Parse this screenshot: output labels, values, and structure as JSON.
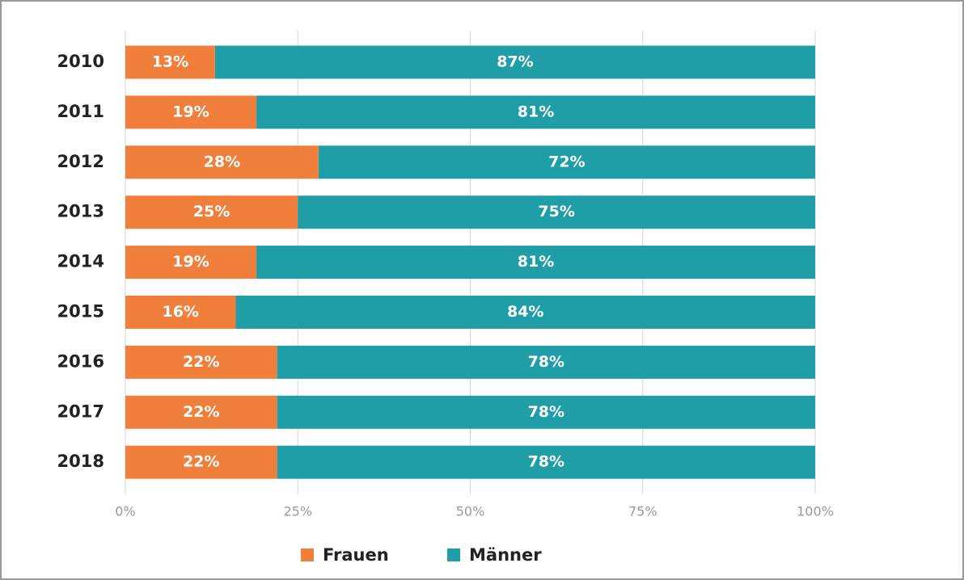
{
  "chart_data": {
    "type": "stacked-bar-horizontal",
    "categories": [
      "2010",
      "2011",
      "2012",
      "2013",
      "2014",
      "2015",
      "2016",
      "2017",
      "2018"
    ],
    "series": [
      {
        "name": "Frauen",
        "color": "#f07f3c",
        "values": [
          13,
          19,
          28,
          25,
          19,
          16,
          22,
          22,
          22
        ],
        "value_labels": [
          "13%",
          "19%",
          "28%",
          "25%",
          "19%",
          "16%",
          "22%",
          "22%",
          "22%"
        ]
      },
      {
        "name": "Männer",
        "color": "#1f9ea8",
        "values": [
          87,
          81,
          72,
          75,
          81,
          84,
          78,
          78,
          78
        ],
        "value_labels": [
          "87%",
          "81%",
          "72%",
          "75%",
          "81%",
          "84%",
          "78%",
          "78%",
          "78%"
        ]
      }
    ],
    "xlim": [
      0,
      100
    ],
    "xticks": [
      {
        "value": 0,
        "label": "0%"
      },
      {
        "value": 25,
        "label": "25%"
      },
      {
        "value": 50,
        "label": "50%"
      },
      {
        "value": 75,
        "label": "75%"
      },
      {
        "value": 100,
        "label": "100%"
      }
    ],
    "grid": true,
    "legend": "bottom"
  }
}
